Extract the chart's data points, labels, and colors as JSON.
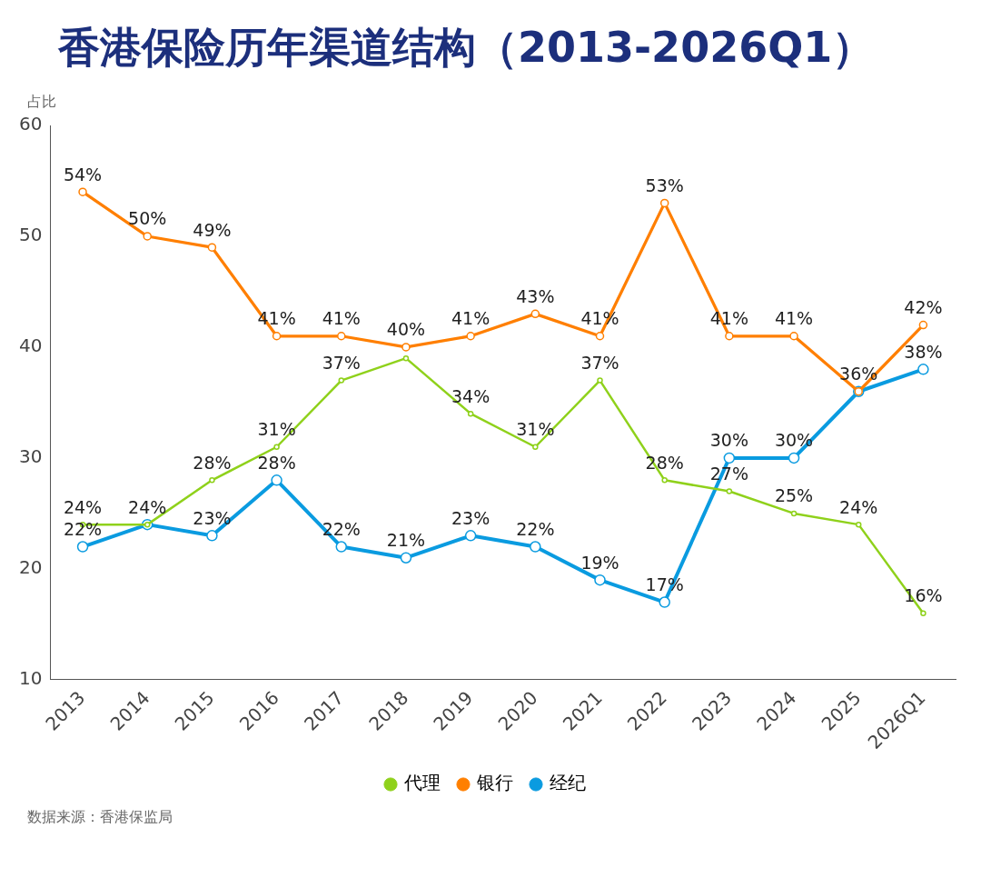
{
  "chart_data": {
    "type": "line",
    "title": "香港保险历年渠道结构（2013-2026Q1）",
    "ylabel": "占比",
    "categories": [
      "2013",
      "2014",
      "2015",
      "2016",
      "2017",
      "2018",
      "2019",
      "2020",
      "2021",
      "2022",
      "2023",
      "2024",
      "2025",
      "2026Q1"
    ],
    "series": [
      {
        "name": "代理",
        "color": "#8fd11b",
        "values": [
          24,
          24,
          28,
          31,
          37,
          39,
          34,
          31,
          37,
          28,
          27,
          25,
          24,
          16
        ],
        "value_labels": [
          "24%",
          "24%",
          "28%",
          "31%",
          "37%",
          null,
          "34%",
          "31%",
          "37%",
          "28%",
          "27%",
          "25%",
          "24%",
          "16%"
        ]
      },
      {
        "name": "银行",
        "color": "#ff7f00",
        "values": [
          54,
          50,
          49,
          41,
          41,
          40,
          41,
          43,
          41,
          53,
          41,
          41,
          36,
          42
        ],
        "value_labels": [
          "54%",
          "50%",
          "49%",
          "41%",
          "41%",
          "40%",
          "41%",
          "43%",
          "41%",
          "53%",
          "41%",
          "41%",
          null,
          "42%"
        ]
      },
      {
        "name": "经纪",
        "color": "#0a9be0",
        "values": [
          22,
          24,
          23,
          28,
          22,
          21,
          23,
          22,
          19,
          17,
          30,
          30,
          36,
          38
        ],
        "value_labels": [
          "22%",
          null,
          "23%",
          "28%",
          "22%",
          "21%",
          "23%",
          "22%",
          "19%",
          "17%",
          "30%",
          "30%",
          "36%",
          "38%"
        ]
      }
    ],
    "ylim": [
      10,
      60
    ],
    "yticks": [
      10,
      20,
      30,
      40,
      50,
      60
    ],
    "grid": false,
    "legend": "bottom",
    "marker": "circle",
    "line_style": "solid",
    "annotations": [
      "数据来源：香港保监局"
    ]
  }
}
